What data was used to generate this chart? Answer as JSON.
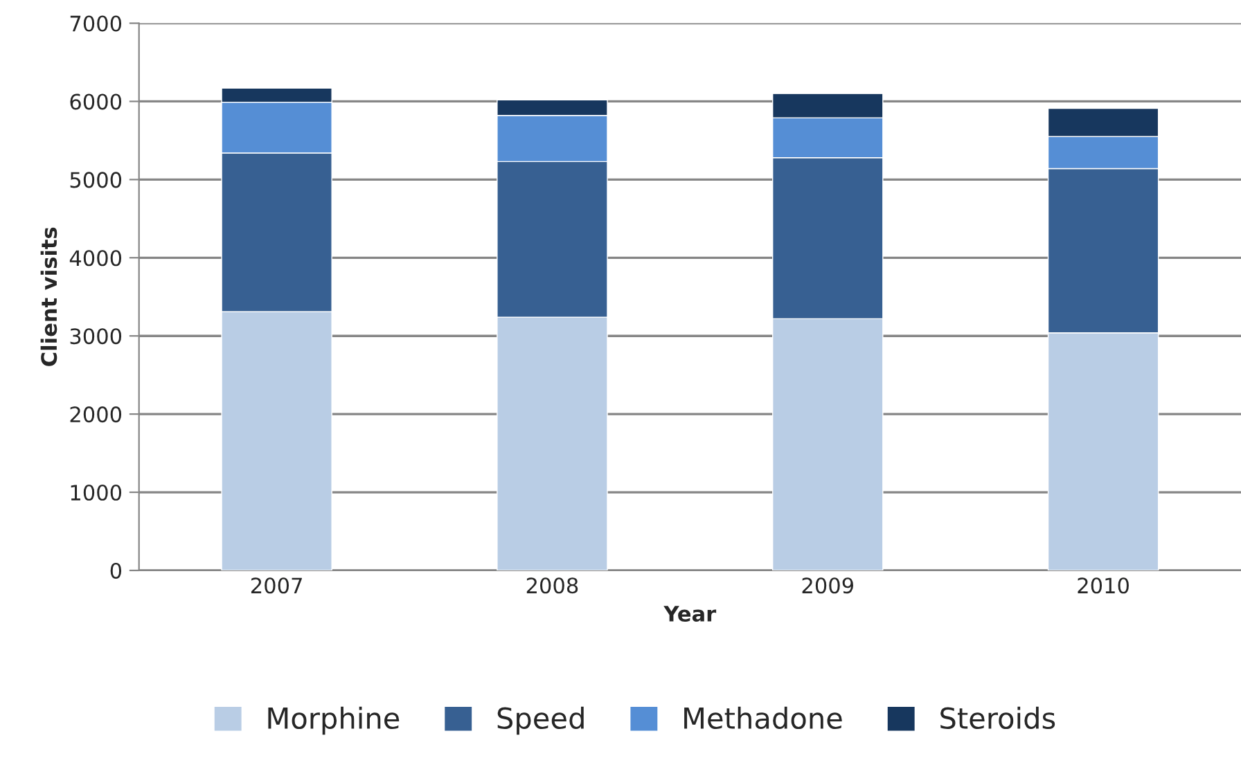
{
  "chart_data": {
    "type": "bar",
    "stacked": true,
    "xlabel": "Year",
    "ylabel": "Client visits",
    "categories": [
      "2007",
      "2008",
      "2009",
      "2010"
    ],
    "series": [
      {
        "name": "Morphine",
        "color": "#b9cde5",
        "values": [
          3310,
          3240,
          3220,
          3040
        ]
      },
      {
        "name": "Speed",
        "color": "#376092",
        "values": [
          2030,
          1990,
          2060,
          2100
        ]
      },
      {
        "name": "Methadone",
        "color": "#558ed5",
        "values": [
          650,
          590,
          510,
          410
        ]
      },
      {
        "name": "Steroids",
        "color": "#17375e",
        "values": [
          180,
          200,
          310,
          360
        ]
      }
    ],
    "ylim": [
      0,
      7000
    ],
    "yticks": [
      0,
      1000,
      2000,
      3000,
      4000,
      5000,
      6000,
      7000
    ],
    "grid": "y",
    "legend": "bottom"
  }
}
